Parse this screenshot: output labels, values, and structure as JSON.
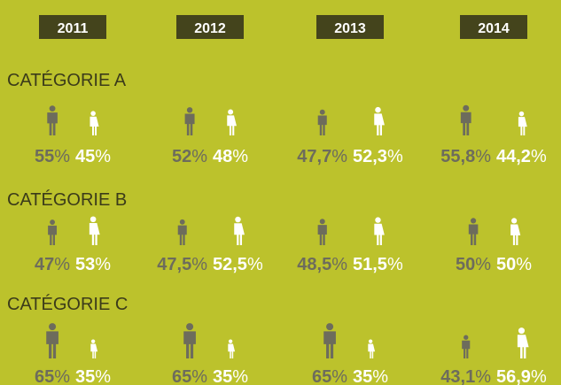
{
  "chart_data": {
    "type": "pictogram",
    "background": "#bcc22c",
    "year_box_color": "#44441c",
    "men_color": "#6d6c5c",
    "women_color": "#ffffff",
    "columns": [
      "2011",
      "2012",
      "2013",
      "2014"
    ],
    "groups": [
      {
        "name": "CATÉGORIE A",
        "men": {
          "values": [
            55,
            52,
            47.7,
            55.8
          ],
          "value_labels": [
            "55%",
            "52%",
            "47,7%",
            "55,8%"
          ]
        },
        "women": {
          "values": [
            45,
            48,
            52.3,
            44.2
          ],
          "value_labels": [
            "45%",
            "48%",
            "52,3%",
            "44,2%"
          ]
        }
      },
      {
        "name": "CATÉGORIE B",
        "men": {
          "values": [
            47,
            47.5,
            48.5,
            50
          ],
          "value_labels": [
            "47%",
            "47,5%",
            "48,5%",
            "50%"
          ]
        },
        "women": {
          "values": [
            53,
            52.5,
            51.5,
            50
          ],
          "value_labels": [
            "53%",
            "52,5%",
            "51,5%",
            "50%"
          ]
        }
      },
      {
        "name": "CATÉGORIE C",
        "men": {
          "values": [
            65,
            65,
            65,
            43.1
          ],
          "value_labels": [
            "65%",
            "65%",
            "65%",
            "43,1%"
          ]
        },
        "women": {
          "values": [
            35,
            35,
            35,
            56.9
          ],
          "value_labels": [
            "35%",
            "35%",
            "35%",
            "56,9%"
          ]
        }
      }
    ]
  }
}
